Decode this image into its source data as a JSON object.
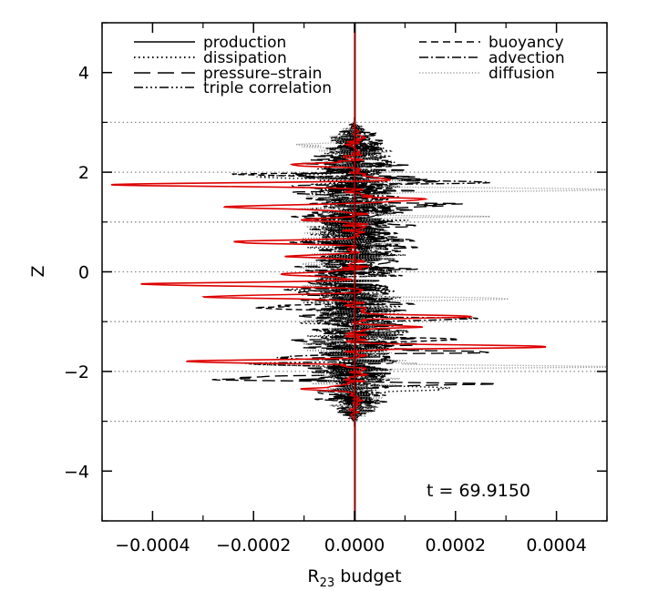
{
  "chart_data": {
    "type": "line",
    "title": "",
    "xlabel": "R",
    "xlabel_subscript": "23",
    "xlabel_suffix": " budget",
    "ylabel": "Z",
    "xlim": [
      -0.0005,
      0.0005
    ],
    "ylim": [
      -5,
      5
    ],
    "x_ticks": [
      -0.0004,
      -0.0002,
      0.0,
      0.0002,
      0.0004
    ],
    "x_tick_labels": [
      "−0.0004",
      "−0.0002",
      "0.0000",
      "0.0002",
      "0.0004"
    ],
    "y_ticks": [
      -4,
      -2,
      0,
      2,
      4
    ],
    "y_tick_labels": [
      "−4",
      "−2",
      "0",
      "2",
      "4"
    ],
    "reference_lines_y": [
      -3,
      -2,
      -1,
      0,
      1,
      2,
      3
    ],
    "grid": false,
    "legend_placement": "top",
    "annotation": "t = 69.9150",
    "series": [
      {
        "name": "production",
        "color": "#000000",
        "dash": "solid",
        "amp": 6e-05,
        "env": 1.0,
        "seed": 1,
        "peaks": [
          [
            1.95,
            -8e-05
          ],
          [
            -1.6,
            -6e-05
          ],
          [
            -2.15,
            -0.00011
          ]
        ]
      },
      {
        "name": "dissipation",
        "color": "#000000",
        "dash": "dot",
        "amp": 0.00011,
        "env": 1.0,
        "seed": 2,
        "peaks": [
          [
            1.9,
            -0.00019
          ],
          [
            -1.85,
            -0.00022
          ],
          [
            -2.35,
            0.00018
          ]
        ]
      },
      {
        "name": "pressure–strain",
        "color": "#000000",
        "dash": "longdash",
        "amp": 0.00013,
        "env": 1.0,
        "seed": 3,
        "peaks": [
          [
            1.85,
            0.00024
          ],
          [
            1.35,
            0.00025
          ],
          [
            -2.15,
            -0.00024
          ],
          [
            -1.6,
            0.00021
          ],
          [
            -2.25,
            0.0002
          ]
        ]
      },
      {
        "name": "triple correlation",
        "color": "#000000",
        "dash": "dashdotdot",
        "amp": 7e-05,
        "env": 1.0,
        "seed": 4,
        "peaks": [
          [
            1.5,
            9e-05
          ],
          [
            -0.35,
            -9e-05
          ],
          [
            -1.85,
            -0.00017
          ]
        ]
      },
      {
        "name": "buoyancy",
        "color": "#000000",
        "dash": "dash",
        "amp": 0.0001,
        "env": 1.0,
        "seed": 5,
        "peaks": [
          [
            1.95,
            -0.00019
          ],
          [
            -0.7,
            -0.00016
          ],
          [
            -1.35,
            0.00021
          ]
        ]
      },
      {
        "name": "advection",
        "color": "#000000",
        "dash": "dashdot",
        "amp": 8e-05,
        "env": 1.0,
        "seed": 6,
        "peaks": [
          [
            1.8,
            0.00026
          ],
          [
            -0.95,
            0.00022
          ],
          [
            -1.7,
            -0.00017
          ]
        ]
      },
      {
        "name": "diffusion",
        "color": "#888888",
        "dash": "finedot",
        "amp": 0.00011,
        "env": 1.0,
        "seed": 7,
        "peaks": [
          [
            1.65,
            0.00046
          ],
          [
            2.55,
            -0.00012
          ],
          [
            1.1,
            0.00018
          ],
          [
            -1.9,
            0.00047
          ],
          [
            -0.55,
            0.00024
          ]
        ]
      },
      {
        "name": "",
        "color": "#dd0000",
        "dash": "solid",
        "amp": 3e-05,
        "env": 1.0,
        "seed": 8,
        "peaks": [
          [
            1.75,
            -0.00048
          ],
          [
            1.3,
            -0.00027
          ],
          [
            0.6,
            -0.00026
          ],
          [
            -0.25,
            -0.00043
          ],
          [
            -0.5,
            -0.00031
          ],
          [
            -1.8,
            -0.00032
          ],
          [
            -2.35,
            -9e-05
          ],
          [
            -1.5,
            0.0004
          ],
          [
            -1.1,
            0.00013
          ],
          [
            -0.9,
            0.00022
          ],
          [
            1.85,
            7e-05
          ],
          [
            2.15,
            -0.00014
          ],
          [
            2.7,
            2e-05
          ],
          [
            1.45,
            0.00015
          ],
          [
            0.3,
            -0.00012
          ],
          [
            -0.05,
            -0.00017
          ],
          [
            1.05,
            -9e-05
          ]
        ]
      }
    ]
  },
  "legend": {
    "left": [
      "production",
      "dissipation",
      "pressure–strain",
      "triple correlation"
    ],
    "right": [
      "buoyancy",
      "advection",
      "diffusion"
    ]
  }
}
